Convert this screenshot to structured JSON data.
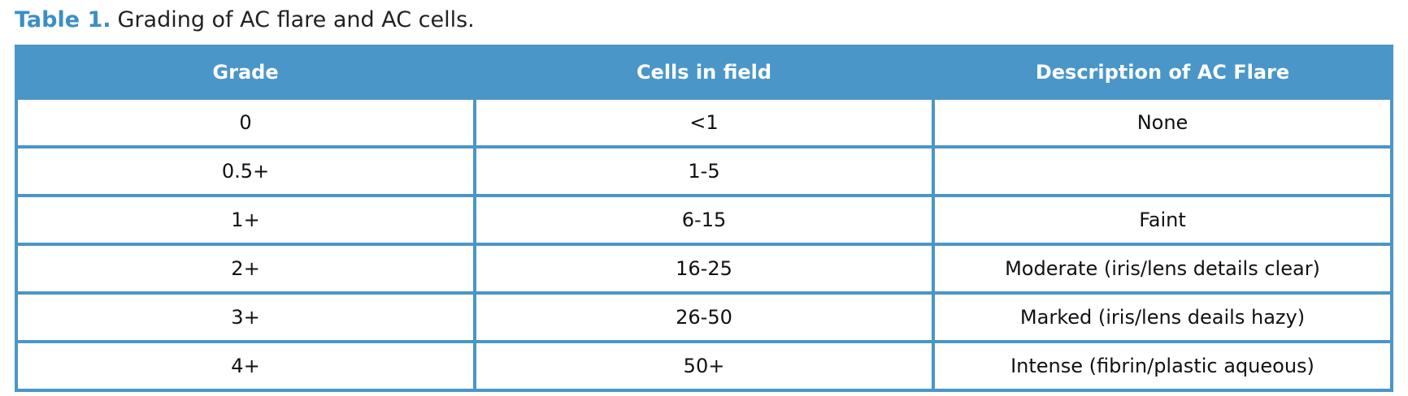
{
  "caption": {
    "label": "Table 1.",
    "text": "Grading of AC flare and AC cells."
  },
  "table": {
    "header": [
      "Grade",
      "Cells in field",
      "Description of AC Flare"
    ],
    "rows": [
      [
        "0",
        "<1",
        "None"
      ],
      [
        "0.5+",
        "1-5",
        null
      ],
      [
        "1+",
        "6-15",
        "Faint"
      ],
      [
        "2+",
        "16-25",
        "Moderate (iris/lens details clear)"
      ],
      [
        "3+",
        "26-50",
        "Marked (iris/lens deails hazy)"
      ],
      [
        "4+",
        "50+",
        "Intense (fibrin/plastic aqueous)"
      ]
    ]
  }
}
